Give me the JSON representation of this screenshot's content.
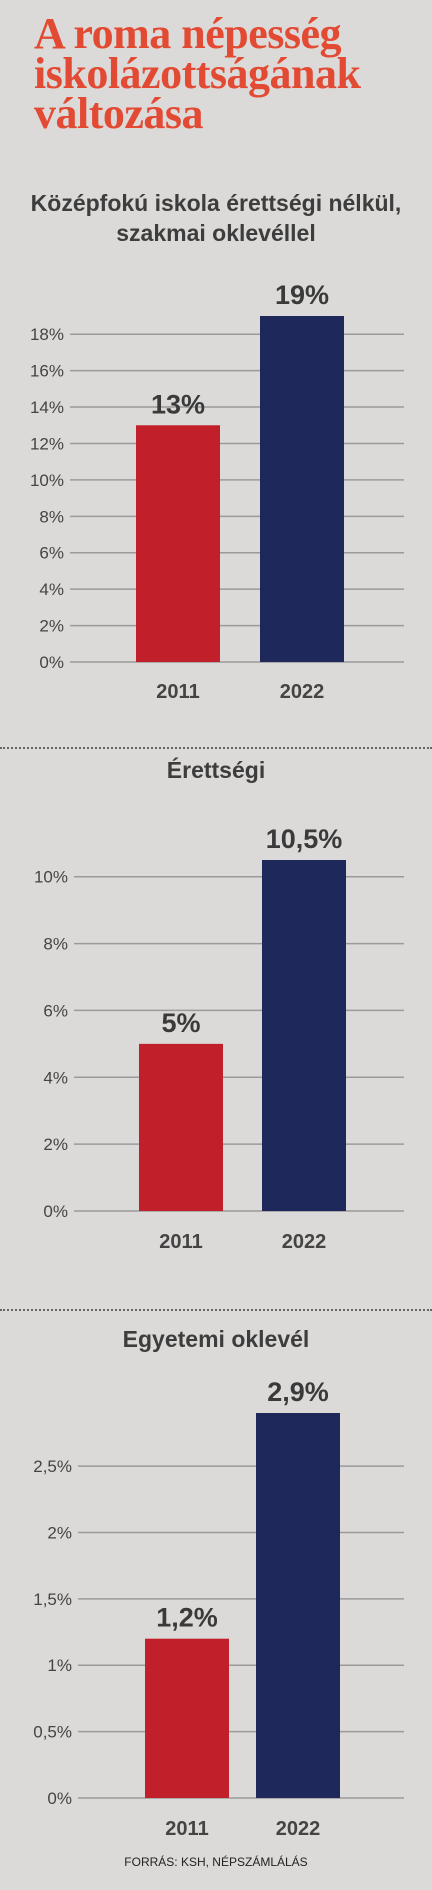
{
  "page_title": "A roma népesség iskolázottságának változása",
  "source": "FORRÁS: KSH, NÉPSZÁMLÁLÁS",
  "colors": {
    "title": "#e24a33",
    "bar_2011": "#c1202a",
    "bar_2022": "#1f285a"
  },
  "chart_data": [
    {
      "type": "bar",
      "title": "Középfokú iskola érettségi nélkül, szakmai oklevéllel",
      "categories": [
        "2011",
        "2022"
      ],
      "values": [
        13,
        19
      ],
      "value_labels": [
        "13%",
        "19%"
      ],
      "ylim": [
        0,
        19
      ],
      "yticks": [
        0,
        2,
        4,
        6,
        8,
        10,
        12,
        14,
        16,
        18
      ],
      "ytick_labels": [
        "0%",
        "2%",
        "4%",
        "6%",
        "8%",
        "10%",
        "12%",
        "14%",
        "16%",
        "18%"
      ],
      "grid": true
    },
    {
      "type": "bar",
      "title": "Érettségi",
      "categories": [
        "2011",
        "2022"
      ],
      "values": [
        5,
        10.5
      ],
      "value_labels": [
        "5%",
        "10,5%"
      ],
      "ylim": [
        0,
        10.5
      ],
      "yticks": [
        0,
        2,
        4,
        6,
        8,
        10
      ],
      "ytick_labels": [
        "0%",
        "2%",
        "4%",
        "6%",
        "8%",
        "10%"
      ],
      "grid": true
    },
    {
      "type": "bar",
      "title": "Egyetemi oklevél",
      "categories": [
        "2011",
        "2022"
      ],
      "values": [
        1.2,
        2.9
      ],
      "value_labels": [
        "1,2%",
        "2,9%"
      ],
      "ylim": [
        0,
        2.9
      ],
      "yticks": [
        0,
        0.5,
        1,
        1.5,
        2,
        2.5
      ],
      "ytick_labels": [
        "0%",
        "0,5%",
        "1%",
        "1,5%",
        "2%",
        "2,5%"
      ],
      "grid": true
    }
  ]
}
